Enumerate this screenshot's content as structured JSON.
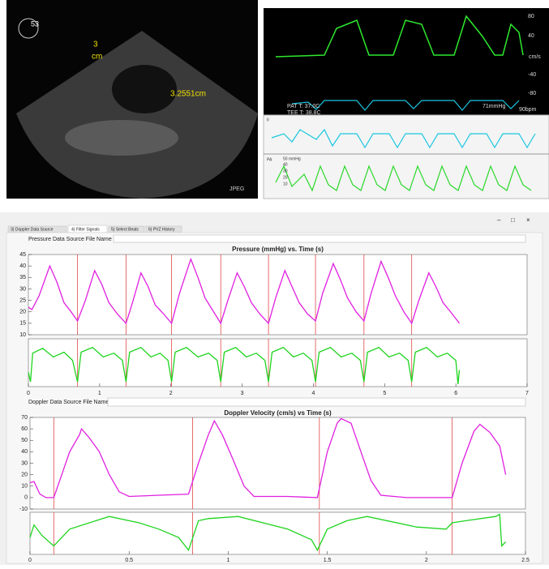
{
  "echo_image": {
    "depth": "53",
    "scale_value": "3",
    "scale_unit": "cm",
    "measurement": "3.2551cm",
    "format": "JPEG"
  },
  "doppler_image": {
    "scale": [
      "80",
      "40",
      "cm/s",
      "-40",
      "-80"
    ],
    "pat_temp": "PAT T: 37.0C",
    "tee_temp": "TEE T: 38.8C",
    "pressure": "71mmHg",
    "rate": "90bpm",
    "lead": "II",
    "pa": "PA",
    "pa_scale": [
      "50 mmHg",
      "40",
      "30",
      "20",
      "10"
    ]
  },
  "window": {
    "controls": [
      "–",
      "□",
      "×"
    ],
    "tabs": [
      "3) Doppler Data Source",
      "4) Filter Signals",
      "5) Select Beats",
      "6) PVZ History"
    ],
    "pressure_source_label": "Pressure Data Source File Name",
    "doppler_source_label": "Doppler Data Source File Name"
  },
  "chart_data": [
    {
      "type": "line",
      "title": "Pressure (mmHg) vs. Time (s)",
      "x": [
        0,
        0.05,
        0.15,
        0.3,
        0.4,
        0.5,
        0.6,
        0.69,
        0.8,
        0.93,
        1.03,
        1.13,
        1.25,
        1.37,
        1.47,
        1.58,
        1.68,
        1.78,
        1.9,
        2.01,
        2.12,
        2.28,
        2.38,
        2.48,
        2.6,
        2.7,
        2.8,
        2.93,
        3.03,
        3.13,
        3.25,
        3.37,
        3.47,
        3.6,
        3.7,
        3.8,
        3.92,
        4.03,
        4.13,
        4.28,
        4.38,
        4.48,
        4.6,
        4.71,
        4.81,
        4.95,
        5.05,
        5.15,
        5.27,
        5.38,
        5.48,
        5.62,
        5.72,
        5.82,
        5.95,
        6.05
      ],
      "series": [
        {
          "color": "#e01fe0",
          "values": [
            22,
            21,
            27,
            40,
            33,
            24,
            20,
            16,
            25,
            38,
            32,
            24,
            19,
            15,
            25,
            37,
            31,
            23,
            19,
            15,
            28,
            43,
            35,
            26,
            20,
            15,
            25,
            37,
            31,
            24,
            19,
            15,
            26,
            38,
            31,
            24,
            19,
            16,
            28,
            41,
            34,
            26,
            20,
            16,
            28,
            42,
            35,
            27,
            20,
            15,
            25,
            37,
            31,
            24,
            19,
            15
          ]
        }
      ],
      "markers": [
        0.69,
        1.37,
        2.01,
        2.7,
        3.37,
        4.03,
        4.71,
        5.38
      ],
      "marker_color": "#e04848",
      "xlim": [
        0,
        7
      ],
      "ylim": [
        10,
        45
      ],
      "yticks": [
        10,
        15,
        20,
        25,
        30,
        35,
        40,
        45
      ]
    },
    {
      "type": "line",
      "x": [
        0,
        0.03,
        0.06,
        0.2,
        0.35,
        0.5,
        0.62,
        0.69,
        0.74,
        0.9,
        1.05,
        1.2,
        1.32,
        1.37,
        1.42,
        1.58,
        1.72,
        1.85,
        1.96,
        2.01,
        2.06,
        2.22,
        2.38,
        2.53,
        2.65,
        2.7,
        2.75,
        2.91,
        3.06,
        3.2,
        3.32,
        3.37,
        3.42,
        3.58,
        3.72,
        3.86,
        3.98,
        4.03,
        4.08,
        4.24,
        4.39,
        4.54,
        4.66,
        4.71,
        4.76,
        4.92,
        5.06,
        5.21,
        5.33,
        5.38,
        5.43,
        5.59,
        5.74,
        5.88,
        6.0,
        6.03,
        6.05
      ],
      "series": [
        {
          "color": "#1fd41f",
          "values": [
            0.3,
            0.1,
            0.7,
            0.8,
            0.62,
            0.72,
            0.55,
            0.1,
            0.72,
            0.82,
            0.62,
            0.7,
            0.55,
            0.1,
            0.72,
            0.82,
            0.62,
            0.7,
            0.55,
            0.1,
            0.72,
            0.82,
            0.62,
            0.7,
            0.55,
            0.1,
            0.72,
            0.82,
            0.62,
            0.7,
            0.55,
            0.1,
            0.72,
            0.82,
            0.62,
            0.7,
            0.55,
            0.1,
            0.72,
            0.82,
            0.62,
            0.7,
            0.55,
            0.1,
            0.72,
            0.82,
            0.62,
            0.7,
            0.55,
            0.1,
            0.72,
            0.82,
            0.62,
            0.7,
            0.55,
            0.05,
            0.35
          ]
        }
      ],
      "markers": [
        0.69,
        1.37,
        2.01,
        2.7,
        3.37,
        4.03,
        4.71,
        5.38
      ],
      "marker_color": "#e04848",
      "xlim": [
        0,
        7
      ],
      "xticks": [
        0,
        1,
        2,
        3,
        4,
        5,
        6,
        7
      ],
      "ylim": [
        0,
        1
      ]
    },
    {
      "type": "line",
      "title": "Doppler Velocity (cm/s) vs Time (s)",
      "x": [
        0,
        0.02,
        0.05,
        0.08,
        0.12,
        0.15,
        0.2,
        0.25,
        0.26,
        0.3,
        0.35,
        0.4,
        0.45,
        0.5,
        0.65,
        0.8,
        0.85,
        0.9,
        0.93,
        0.97,
        1.02,
        1.08,
        1.13,
        1.3,
        1.45,
        1.5,
        1.55,
        1.57,
        1.62,
        1.67,
        1.72,
        1.77,
        1.9,
        2.13,
        2.18,
        2.24,
        2.27,
        2.32,
        2.37,
        2.4
      ],
      "series": [
        {
          "color": "#e01fe0",
          "values": [
            13,
            14,
            3,
            0,
            0,
            15,
            40,
            55,
            60,
            52,
            40,
            20,
            5,
            1,
            2,
            3,
            30,
            55,
            67,
            55,
            35,
            10,
            1,
            1,
            0,
            40,
            65,
            69,
            65,
            40,
            15,
            2,
            0,
            0,
            30,
            58,
            64,
            57,
            45,
            20
          ]
        }
      ],
      "markers": [
        0.12,
        0.82,
        1.46,
        2.13
      ],
      "marker_color": "#e04848",
      "xlim": [
        0,
        2.5
      ],
      "ylim": [
        -10,
        70
      ],
      "yticks": [
        -10,
        0,
        10,
        20,
        30,
        40,
        50,
        60,
        70
      ]
    },
    {
      "type": "line",
      "x": [
        0,
        0.02,
        0.06,
        0.12,
        0.2,
        0.4,
        0.55,
        0.65,
        0.75,
        0.8,
        0.85,
        0.9,
        1.05,
        1.3,
        1.42,
        1.45,
        1.5,
        1.6,
        1.7,
        1.95,
        2.1,
        2.13,
        2.2,
        2.35,
        2.37,
        2.38,
        2.4
      ],
      "series": [
        {
          "color": "#1fd41f",
          "values": [
            0.4,
            0.7,
            0.45,
            0.2,
            0.6,
            0.9,
            0.75,
            0.6,
            0.4,
            0.1,
            0.8,
            0.85,
            0.9,
            0.6,
            0.35,
            0.1,
            0.6,
            0.8,
            0.9,
            0.65,
            0.6,
            0.75,
            0.8,
            0.9,
            0.95,
            0.2,
            0.3
          ]
        }
      ],
      "markers": [
        0.12,
        0.82,
        1.46,
        2.13
      ],
      "marker_color": "#e04848",
      "xlim": [
        0,
        2.5
      ],
      "xticks": [
        0,
        0.5,
        1,
        1.5,
        2,
        2.5
      ],
      "ylim": [
        0,
        1
      ]
    }
  ]
}
